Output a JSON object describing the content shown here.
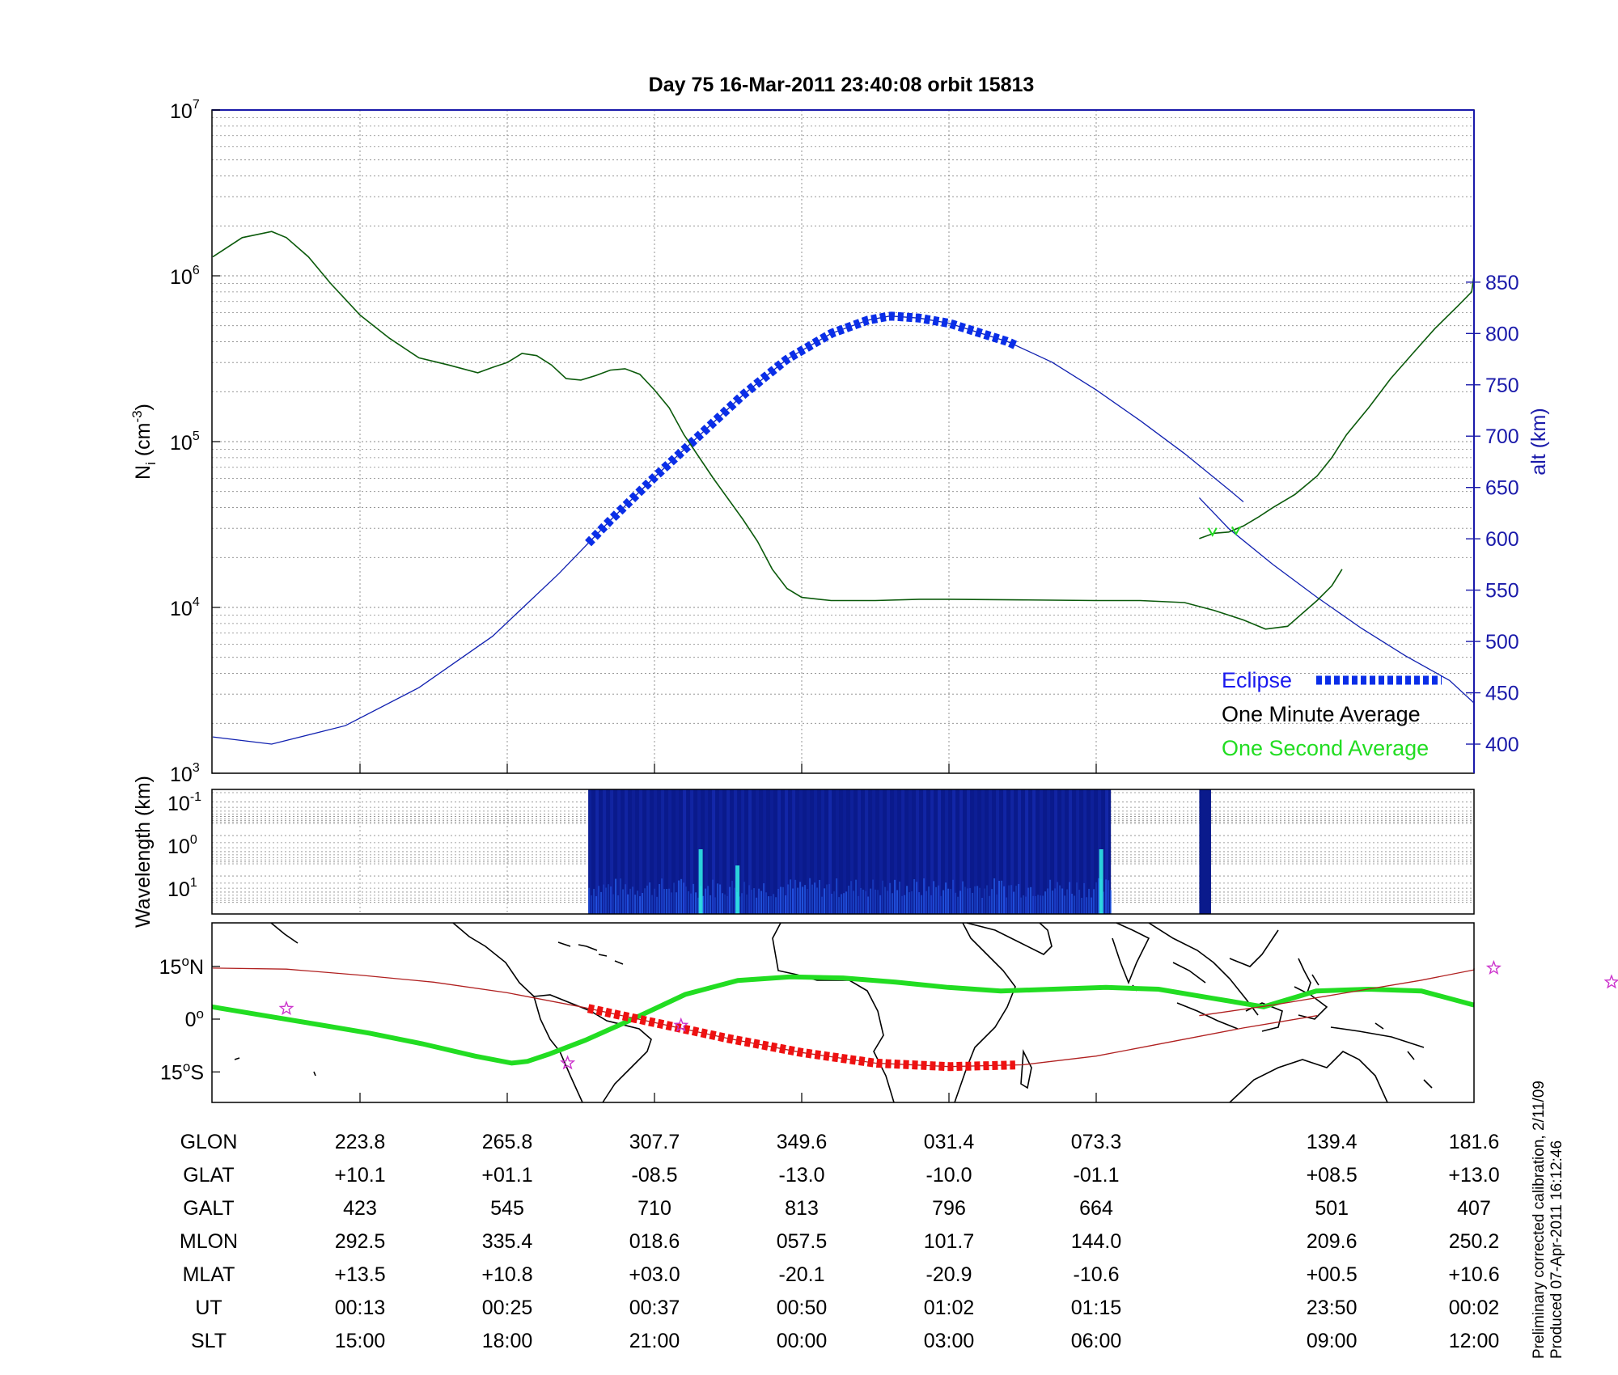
{
  "title": "Day 75  16-Mar-2011 23:40:08   orbit 15813",
  "footer": {
    "line1": "Preliminary corrected calibration, 2/11/09",
    "line2": "Produced 07-Apr-2011 16:12:46"
  },
  "colors": {
    "density": "#0b5a0b",
    "altitude": "#1020b0",
    "eclipse": "#0a2ee8",
    "one_second": "#22dd22",
    "track": "#b02020",
    "track_eclipse": "#ee1111",
    "star": "#cc33cc",
    "axis_right": "#1a1aaa",
    "spectrogram": "#0a1a8c"
  },
  "chart_data": [
    {
      "type": "line",
      "panel": "density",
      "ylabel": "N",
      "ylabel_sub": "i",
      "ylabel_unit_pre": " (cm",
      "ylabel_unit_sup": "-3",
      "ylabel_unit_post": ")",
      "yscale": "log",
      "ylim": [
        1000,
        10000000
      ],
      "yticks": [
        {
          "base": "10",
          "exp": "3",
          "value": 1000
        },
        {
          "base": "10",
          "exp": "4",
          "value": 10000
        },
        {
          "base": "10",
          "exp": "5",
          "value": 100000
        },
        {
          "base": "10",
          "exp": "6",
          "value": 1000000
        },
        {
          "base": "10",
          "exp": "7",
          "value": 10000000
        }
      ],
      "xlim": [
        0,
        8.6
      ],
      "grid": true,
      "y2label": "alt (km)",
      "y2lim": [
        375,
        875
      ],
      "y2ticks": [
        "400",
        "450",
        "500",
        "550",
        "600",
        "650",
        "700",
        "750",
        "800",
        "850"
      ],
      "legend_position": "bottom-right",
      "legend": [
        {
          "label": "Eclipse",
          "color_key": "eclipse"
        },
        {
          "label": "One Minute Average",
          "color_key": "density"
        },
        {
          "label": "One Second Average",
          "color_key": "one_second"
        }
      ],
      "density_segments": [
        [
          [
            0,
            1300000
          ],
          [
            0.2,
            1700000
          ],
          [
            0.4,
            1850000
          ],
          [
            0.5,
            1700000
          ],
          [
            0.65,
            1300000
          ],
          [
            0.8,
            900000
          ],
          [
            1.0,
            580000
          ],
          [
            1.2,
            420000
          ],
          [
            1.4,
            320000
          ],
          [
            1.6,
            290000
          ],
          [
            1.8,
            260000
          ],
          [
            1.9,
            280000
          ],
          [
            2.0,
            300000
          ],
          [
            2.1,
            340000
          ],
          [
            2.2,
            330000
          ],
          [
            2.3,
            290000
          ],
          [
            2.4,
            240000
          ],
          [
            2.5,
            235000
          ],
          [
            2.6,
            250000
          ],
          [
            2.7,
            270000
          ],
          [
            2.8,
            275000
          ],
          [
            2.9,
            255000
          ],
          [
            3.0,
            205000
          ],
          [
            3.1,
            160000
          ],
          [
            3.2,
            110000
          ],
          [
            3.4,
            60000
          ],
          [
            3.6,
            34000
          ],
          [
            3.7,
            25000
          ],
          [
            3.8,
            17000
          ],
          [
            3.9,
            13000
          ],
          [
            4.0,
            11500
          ],
          [
            4.2,
            11000
          ],
          [
            4.5,
            11000
          ],
          [
            4.8,
            11200
          ],
          [
            5.0,
            11200
          ],
          [
            5.5,
            11100
          ],
          [
            6.0,
            11000
          ],
          [
            6.3,
            11000
          ],
          [
            6.6,
            10700
          ],
          [
            6.8,
            9600
          ],
          [
            7.0,
            8400
          ],
          [
            7.15,
            7400
          ],
          [
            7.3,
            7700
          ],
          [
            7.5,
            11000
          ],
          [
            7.6,
            13500
          ],
          [
            7.67,
            17000
          ]
        ],
        [
          [
            6.7,
            26000
          ],
          [
            6.8,
            28000
          ],
          [
            6.9,
            28500
          ],
          [
            7.0,
            31000
          ],
          [
            7.1,
            35000
          ],
          [
            7.2,
            40000
          ],
          [
            7.35,
            48000
          ],
          [
            7.5,
            62000
          ],
          [
            7.6,
            80000
          ],
          [
            7.7,
            110000
          ],
          [
            7.85,
            160000
          ],
          [
            8.0,
            240000
          ],
          [
            8.15,
            340000
          ],
          [
            8.3,
            480000
          ],
          [
            8.45,
            650000
          ],
          [
            8.55,
            800000
          ],
          [
            8.7,
            1000000
          ],
          [
            8.8,
            1150000
          ],
          [
            8.9,
            1150000
          ],
          [
            9.0,
            1180000
          ],
          [
            9.1,
            1230000
          ],
          [
            9.15,
            1300000
          ]
        ]
      ],
      "altitude_segments": [
        [
          [
            0,
            407
          ],
          [
            0.4,
            400
          ],
          [
            0.9,
            418
          ],
          [
            1.4,
            455
          ],
          [
            1.9,
            505
          ],
          [
            2.35,
            566
          ],
          [
            2.7,
            618
          ],
          [
            3.0,
            660
          ],
          [
            3.3,
            700
          ],
          [
            3.6,
            740
          ],
          [
            3.9,
            775
          ],
          [
            4.2,
            800
          ],
          [
            4.45,
            813
          ],
          [
            4.6,
            817
          ],
          [
            4.8,
            815
          ],
          [
            5.0,
            810
          ],
          [
            5.4,
            792
          ],
          [
            5.7,
            772
          ],
          [
            6.0,
            745
          ],
          [
            6.3,
            715
          ],
          [
            6.6,
            683
          ],
          [
            6.9,
            648
          ],
          [
            7.0,
            636
          ]
        ],
        [
          [
            6.7,
            640
          ],
          [
            6.9,
            610
          ],
          [
            7.2,
            575
          ],
          [
            7.5,
            543
          ],
          [
            7.8,
            513
          ],
          [
            8.1,
            486
          ],
          [
            8.4,
            462
          ],
          [
            8.7,
            440
          ],
          [
            9.0,
            420
          ],
          [
            9.15,
            410
          ]
        ]
      ],
      "eclipse_range": [
        2.55,
        5.45
      ],
      "one_second_points": [
        [
          6.79,
          28500
        ],
        [
          6.95,
          29000
        ]
      ]
    },
    {
      "type": "heatmap",
      "panel": "spectrogram",
      "ylabel": "Wavelength (km)",
      "yticks": [
        {
          "base": "10",
          "exp": "-1"
        },
        {
          "base": "10",
          "exp": "0"
        },
        {
          "base": "10",
          "exp": "1"
        }
      ],
      "data_ranges": [
        [
          2.55,
          6.1
        ],
        [
          6.7,
          6.78
        ]
      ]
    },
    {
      "type": "line",
      "panel": "map",
      "yticks": [
        {
          "label": "15",
          "suffix": "N",
          "value": 15
        },
        {
          "label": "0",
          "suffix": "",
          "value": 0
        },
        {
          "label": "15",
          "suffix": "S",
          "value": -15
        }
      ],
      "ylim": [
        -25,
        27
      ],
      "track_segments": [
        [
          [
            0,
            14.5
          ],
          [
            0.5,
            14.2
          ],
          [
            1.0,
            12.5
          ],
          [
            1.5,
            10.5
          ],
          [
            2.0,
            7.5
          ],
          [
            2.5,
            3.5
          ],
          [
            3.0,
            -1.0
          ],
          [
            3.5,
            -5.5
          ],
          [
            4.0,
            -9.5
          ],
          [
            4.5,
            -12.5
          ],
          [
            5.0,
            -13.5
          ],
          [
            5.5,
            -13.0
          ],
          [
            6.0,
            -10.5
          ],
          [
            6.5,
            -6.5
          ],
          [
            7.0,
            -2.5
          ],
          [
            7.5,
            1.0
          ]
        ],
        [
          [
            6.7,
            1.0
          ],
          [
            7.2,
            4.0
          ],
          [
            7.7,
            7.5
          ],
          [
            8.2,
            11.0
          ],
          [
            8.7,
            14.0
          ],
          [
            9.15,
            14.5
          ]
        ]
      ],
      "track_eclipse_range": [
        2.55,
        5.45
      ],
      "magnetic_equator": [
        [
          0,
          3.5
        ],
        [
          0.5,
          1.0
        ],
        [
          1.0,
          -1.5
        ],
        [
          1.5,
          -4.0
        ],
        [
          2.0,
          -7.0
        ],
        [
          2.5,
          -10.5
        ],
        [
          2.85,
          -12.5
        ],
        [
          3.0,
          -12.0
        ],
        [
          3.2,
          -10.0
        ],
        [
          3.55,
          -6.0
        ],
        [
          4.0,
          0.0
        ],
        [
          4.5,
          7.0
        ],
        [
          5.0,
          11.0
        ],
        [
          5.5,
          12.0
        ],
        [
          6.0,
          11.7
        ],
        [
          6.5,
          10.5
        ],
        [
          7.0,
          9.0
        ],
        [
          7.5,
          8.0
        ],
        [
          8.0,
          8.5
        ],
        [
          8.5,
          9.0
        ],
        [
          9.0,
          8.5
        ],
        [
          9.5,
          6.0
        ],
        [
          10.0,
          3.5
        ],
        [
          10.5,
          8.0
        ],
        [
          11.0,
          8.5
        ],
        [
          11.5,
          8.0
        ],
        [
          12.0,
          4.0
        ]
      ],
      "stars": [
        [
          0.5,
          3.0
        ],
        [
          2.41,
          -12.5
        ],
        [
          3.18,
          -1.8
        ],
        [
          8.7,
          14.5
        ],
        [
          9.5,
          10.5
        ]
      ]
    }
  ],
  "table": {
    "x_positions": [
      1.0,
      2.0,
      3.0,
      4.0,
      5.0,
      6.0,
      7.6,
      8.6
    ],
    "rows": [
      {
        "label": "GLON",
        "values": [
          "223.8",
          "265.8",
          "307.7",
          "349.6",
          "031.4",
          "073.3",
          "139.4",
          "181.6"
        ]
      },
      {
        "label": "GLAT",
        "values": [
          "+10.1",
          "+01.1",
          "-08.5",
          "-13.0",
          "-10.0",
          "-01.1",
          "+08.5",
          "+13.0"
        ]
      },
      {
        "label": "GALT",
        "values": [
          "423",
          "545",
          "710",
          "813",
          "796",
          "664",
          "501",
          "407"
        ]
      },
      {
        "label": "MLON",
        "values": [
          "292.5",
          "335.4",
          "018.6",
          "057.5",
          "101.7",
          "144.0",
          "209.6",
          "250.2"
        ]
      },
      {
        "label": "MLAT",
        "values": [
          "+13.5",
          "+10.8",
          "+03.0",
          "-20.1",
          "-20.9",
          "-10.6",
          "+00.5",
          "+10.6"
        ]
      },
      {
        "label": "UT",
        "values": [
          "00:13",
          "00:25",
          "00:37",
          "00:50",
          "01:02",
          "01:15",
          "23:50",
          "00:02"
        ]
      },
      {
        "label": "SLT",
        "values": [
          "15:00",
          "18:00",
          "21:00",
          "00:00",
          "03:00",
          "06:00",
          "09:00",
          "12:00"
        ]
      }
    ]
  }
}
